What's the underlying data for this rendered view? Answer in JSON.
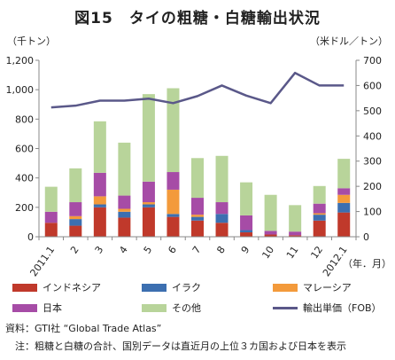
{
  "title": "図15　タイの粗糖・白糖輸出状況",
  "units": {
    "left": "（千トン）",
    "right": "（米ドル／トン）"
  },
  "x_unit": "（年．月）",
  "chart_data": {
    "type": "bar",
    "stacked": true,
    "categories": [
      "2011.1",
      "2",
      "3",
      "4",
      "5",
      "6",
      "7",
      "8",
      "9",
      "10",
      "11",
      "12",
      "2012.1"
    ],
    "series": [
      {
        "name": "インドネシア",
        "color": "#c0392b",
        "values": [
          95,
          75,
          200,
          130,
          200,
          135,
          110,
          95,
          30,
          15,
          10,
          110,
          165
        ]
      },
      {
        "name": "イラク",
        "color": "#3c6fb0",
        "values": [
          0,
          45,
          20,
          40,
          20,
          20,
          25,
          60,
          15,
          0,
          0,
          40,
          65
        ]
      },
      {
        "name": "マレーシア",
        "color": "#f39a3b",
        "values": [
          0,
          20,
          55,
          20,
          15,
          165,
          15,
          0,
          0,
          0,
          0,
          10,
          55
        ]
      },
      {
        "name": "日本",
        "color": "#a64ca6",
        "values": [
          75,
          95,
          160,
          90,
          140,
          120,
          115,
          80,
          100,
          25,
          25,
          65,
          45
        ]
      },
      {
        "name": "その他",
        "color": "#b8d49a",
        "values": [
          170,
          230,
          350,
          360,
          595,
          570,
          270,
          315,
          225,
          245,
          180,
          120,
          200
        ]
      }
    ],
    "line": {
      "name": "輸出単価（FOB）",
      "color": "#5a5889",
      "axis": "right",
      "values": [
        513,
        520,
        540,
        540,
        548,
        530,
        558,
        600,
        560,
        530,
        650,
        600,
        600
      ]
    },
    "y_left": {
      "min": 0,
      "max": 1200,
      "ticks": [
        "0",
        "200",
        "400",
        "600",
        "800",
        "1,000",
        "1,200"
      ]
    },
    "y_right": {
      "min": 0,
      "max": 700,
      "ticks": [
        "0",
        "100",
        "200",
        "300",
        "400",
        "500",
        "600",
        "700"
      ]
    }
  },
  "notes": {
    "source": "資料：GTI社 “Global Trade Atlas”",
    "note": "　注：粗糖と白糖の合計、国別データは直近月の上位３カ国および日本を表示"
  }
}
